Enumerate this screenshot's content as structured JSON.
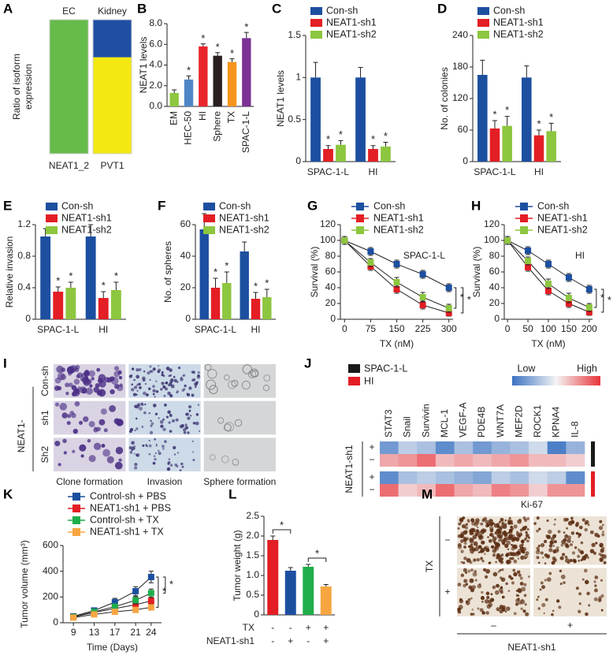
{
  "chart_data": [
    {
      "panel": "A",
      "type": "stacked-bar",
      "categories": [
        "EC",
        "Kidney"
      ],
      "ylabel": [
        "Ratio of isoform",
        "expression"
      ],
      "x_labels": [
        "NEAT1_2",
        "PVT1"
      ],
      "ylim": [
        0,
        100
      ],
      "series": [
        {
          "color": "#66bb4a",
          "values": [
            100,
            0
          ]
        },
        {
          "color": "#f3e812",
          "values": [
            0,
            72
          ]
        },
        {
          "color": "#1f4ea3",
          "values": [
            0,
            28
          ]
        }
      ]
    },
    {
      "panel": "B",
      "type": "bar",
      "ylabel": "NEAT1 levels",
      "categories": [
        "EM",
        "HEC-50",
        "HI",
        "Sphere",
        "TX",
        "SPAC-1-L"
      ],
      "values": [
        1.3,
        2.6,
        5.8,
        4.9,
        4.3,
        6.6
      ],
      "errors": [
        0.3,
        0.35,
        0.25,
        0.3,
        0.3,
        0.55
      ],
      "colors": [
        "#8dc63f",
        "#4f86c6",
        "#e8262a",
        "#2a1f1f",
        "#f7941d",
        "#7b3294"
      ],
      "annotations": [
        null,
        "*",
        "*",
        "*",
        "*",
        "*"
      ],
      "ylim": [
        0,
        8
      ],
      "yticks": [
        {
          "value": 0,
          "label": "0.0"
        },
        {
          "value": 2,
          "label": "2.0"
        },
        {
          "value": 4,
          "label": "4.0"
        },
        {
          "value": 6,
          "label": "6.0"
        },
        {
          "value": 8,
          "label": "8.0"
        }
      ]
    },
    {
      "panel": "C",
      "type": "grouped-bar",
      "ylabel": "NEAT1 levels",
      "categories": [
        "SPAC-1-L",
        "HI"
      ],
      "ylim": [
        0,
        1.5
      ],
      "yticks": [
        0,
        0.5,
        1,
        1.5
      ],
      "series": [
        {
          "name": "Con-sh",
          "color": "#1c4fa0",
          "values": [
            1.0,
            1.0
          ],
          "errors": [
            0.18,
            0.12
          ]
        },
        {
          "name": "NEAT1-sh1",
          "color": "#e31e24",
          "values": [
            0.15,
            0.15
          ],
          "errors": [
            0.04,
            0.04
          ],
          "markers": [
            "*",
            "*"
          ]
        },
        {
          "name": "NEAT1-sh2",
          "color": "#8dc63f",
          "values": [
            0.2,
            0.18
          ],
          "errors": [
            0.05,
            0.05
          ],
          "markers": [
            "*",
            "*"
          ]
        }
      ]
    },
    {
      "panel": "D",
      "type": "grouped-bar",
      "ylabel": "No. of colonies",
      "categories": [
        "SPAC-1-L",
        "HI"
      ],
      "ylim": [
        0,
        240
      ],
      "yticks": [
        0,
        60,
        120,
        180,
        240
      ],
      "series": [
        {
          "name": "Con-sh",
          "color": "#1c4fa0",
          "values": [
            165,
            160
          ],
          "errors": [
            28,
            22
          ]
        },
        {
          "name": "NEAT1-sh1",
          "color": "#e31e24",
          "values": [
            63,
            50
          ],
          "errors": [
            15,
            10
          ],
          "markers": [
            "*",
            "*"
          ]
        },
        {
          "name": "NEAT1-sh2",
          "color": "#8dc63f",
          "values": [
            68,
            58
          ],
          "errors": [
            18,
            15
          ],
          "markers": [
            "*",
            "*"
          ]
        }
      ]
    },
    {
      "panel": "E",
      "type": "grouped-bar",
      "ylabel": "Relative invasion",
      "categories": [
        "SPAC-1-L",
        "HI"
      ],
      "ylim": [
        0,
        1.2
      ],
      "yticks": [
        0,
        0.4,
        0.8,
        1.2
      ],
      "series": [
        {
          "name": "Con-sh",
          "color": "#1c4fa0",
          "values": [
            1.05,
            1.05
          ],
          "errors": [
            0.1,
            0.15
          ]
        },
        {
          "name": "NEAT1-sh1",
          "color": "#e31e24",
          "values": [
            0.35,
            0.27
          ],
          "errors": [
            0.06,
            0.08
          ],
          "markers": [
            "*",
            "*"
          ]
        },
        {
          "name": "NEAT1-sh2",
          "color": "#8dc63f",
          "values": [
            0.4,
            0.37
          ],
          "errors": [
            0.07,
            0.1
          ],
          "markers": [
            "*",
            "*"
          ]
        }
      ]
    },
    {
      "panel": "F",
      "type": "grouped-bar",
      "ylabel": "No. of spheres",
      "categories": [
        "SPAC-1-L",
        "HI"
      ],
      "ylim": [
        0,
        60
      ],
      "yticks": [
        0,
        20,
        40,
        60
      ],
      "series": [
        {
          "name": "Con-sh",
          "color": "#1c4fa0",
          "values": [
            57,
            43
          ],
          "errors": [
            10,
            6
          ]
        },
        {
          "name": "NEAT1-sh1",
          "color": "#e31e24",
          "values": [
            20,
            13
          ],
          "errors": [
            6,
            4
          ],
          "markers": [
            "*",
            "*"
          ]
        },
        {
          "name": "NEAT1-sh2",
          "color": "#8dc63f",
          "values": [
            23,
            14
          ],
          "errors": [
            7,
            5
          ],
          "markers": [
            "*",
            "*"
          ]
        }
      ]
    },
    {
      "panel": "G",
      "type": "line",
      "ylabel": "Survival (%)",
      "xlabel": "TX (nM)",
      "annotation": "SPAC-1-L",
      "significance": [
        "*",
        "*"
      ],
      "x": [
        0,
        75,
        150,
        225,
        300
      ],
      "xlim": [
        -12,
        312
      ],
      "xticks": [
        0,
        75,
        150,
        225,
        300
      ],
      "ylim": [
        0,
        120
      ],
      "yticks": [
        0,
        20,
        40,
        60,
        80,
        100,
        120
      ],
      "series": [
        {
          "name": "Con-sh",
          "color": "#1c4fa0",
          "values": [
            100,
            86,
            70,
            57,
            40
          ],
          "errors": [
            5,
            5,
            5,
            5,
            5
          ]
        },
        {
          "name": "NEAT1-sh1",
          "color": "#e31e24",
          "values": [
            100,
            67,
            38,
            18,
            8
          ],
          "errors": [
            5,
            5,
            5,
            5,
            4
          ]
        },
        {
          "name": "NEAT1-sh2",
          "color": "#8dc63f",
          "values": [
            100,
            72,
            47,
            28,
            14
          ],
          "errors": [
            5,
            5,
            6,
            6,
            5
          ]
        }
      ]
    },
    {
      "panel": "H",
      "type": "line",
      "ylabel": "Survival (%)",
      "xlabel": "TX (nM)",
      "annotation": "HI",
      "significance": [
        "*",
        "*"
      ],
      "x": [
        0,
        50,
        100,
        150,
        200
      ],
      "xlim": [
        -8,
        208
      ],
      "xticks": [
        0,
        50,
        100,
        150,
        200
      ],
      "ylim": [
        0,
        120
      ],
      "yticks": [
        0,
        20,
        40,
        60,
        80,
        100,
        120
      ],
      "series": [
        {
          "name": "Con-sh",
          "color": "#1c4fa0",
          "values": [
            100,
            87,
            70,
            53,
            38
          ],
          "errors": [
            5,
            5,
            5,
            5,
            5
          ]
        },
        {
          "name": "NEAT1-sh1",
          "color": "#e31e24",
          "values": [
            100,
            66,
            36,
            20,
            9
          ],
          "errors": [
            5,
            5,
            5,
            5,
            4
          ]
        },
        {
          "name": "NEAT1-sh2",
          "color": "#8dc63f",
          "values": [
            100,
            74,
            45,
            27,
            15
          ],
          "errors": [
            5,
            5,
            6,
            6,
            5
          ]
        }
      ]
    },
    {
      "panel": "I",
      "type": "image-grid",
      "rows": [
        "Con-sh",
        "sh1",
        "Sh2"
      ],
      "row_group": "NEAT1-",
      "columns": [
        "Clone formation",
        "Invasion",
        "Sphere formation"
      ]
    },
    {
      "panel": "J",
      "type": "heatmap",
      "scale_labels": [
        "Low",
        "High"
      ],
      "colorscale": [
        "#3a72c2",
        "#f4f4f4",
        "#e8333a"
      ],
      "zlim": [
        -1,
        1
      ],
      "group_label": "NEAT1-sh1",
      "columns": [
        "STAT3",
        "Snail",
        "Survivin",
        "MCL-1",
        "VEGF-A",
        "PDE4B",
        "WNT7A",
        "MEF2D",
        "ROCK1",
        "KPNA4",
        "IL-8"
      ],
      "groups": [
        {
          "name": "SPAC-1-L",
          "color": "#1a1a1a",
          "rows": [
            {
              "label": "+",
              "values": [
                -0.7,
                -0.3,
                -0.4,
                -0.8,
                -0.4,
                -0.7,
                -0.5,
                -0.4,
                -0.2,
                -0.9,
                -0.5
              ]
            },
            {
              "label": "−",
              "values": [
                0.4,
                0.5,
                0.7,
                0.3,
                0.4,
                0.3,
                0.4,
                0.5,
                0.3,
                0.3,
                0.2
              ]
            }
          ]
        },
        {
          "name": "HI",
          "color": "#e31e24",
          "rows": [
            {
              "label": "+",
              "values": [
                -0.8,
                -0.4,
                -0.3,
                -0.4,
                -0.5,
                -0.6,
                -0.3,
                -0.4,
                -0.2,
                -0.3,
                -0.8
              ]
            },
            {
              "label": "−",
              "values": [
                0.7,
                0.2,
                0.3,
                0.7,
                0.4,
                0.3,
                0.6,
                0.5,
                0.2,
                0.5,
                0.5
              ]
            }
          ]
        }
      ]
    },
    {
      "panel": "K",
      "type": "line",
      "ylabel": "Tumor volume (mm³)",
      "xlabel": "Time (Days)",
      "significance": [
        "*",
        "*"
      ],
      "x": [
        9,
        13,
        17,
        21,
        24
      ],
      "xlim": [
        7,
        26
      ],
      "xticks": [
        9,
        13,
        17,
        21,
        24
      ],
      "ylim": [
        0,
        600
      ],
      "yticks": [
        0,
        200,
        400,
        600
      ],
      "series": [
        {
          "name": "Control-sh + PBS",
          "color": "#1c4fa0",
          "values": [
            50,
            95,
            160,
            245,
            355
          ],
          "errors": [
            15,
            20,
            30,
            35,
            45
          ]
        },
        {
          "name": "NEAT1-sh1 + PBS",
          "color": "#e31e24",
          "values": [
            45,
            80,
            110,
            140,
            170
          ],
          "errors": [
            12,
            15,
            20,
            22,
            25
          ]
        },
        {
          "name": "Control-sh + TX",
          "color": "#1fae4b",
          "values": [
            45,
            85,
            125,
            175,
            230
          ],
          "errors": [
            12,
            18,
            22,
            28,
            32
          ]
        },
        {
          "name": "NEAT1-sh1 + TX",
          "color": "#f7a541",
          "values": [
            40,
            65,
            85,
            100,
            120
          ],
          "errors": [
            10,
            14,
            18,
            20,
            22
          ]
        }
      ]
    },
    {
      "panel": "L",
      "type": "bar",
      "ylabel": "Tumor weight (g)",
      "values": [
        1.9,
        1.12,
        1.22,
        0.72
      ],
      "errors": [
        0.1,
        0.08,
        0.06,
        0.05
      ],
      "colors": [
        "#e31e24",
        "#1c4fa0",
        "#1fae4b",
        "#f7a541"
      ],
      "significance": [
        "*",
        "*"
      ],
      "ylim": [
        0,
        2.5
      ],
      "yticks": [
        0,
        0.5,
        {
          "value": 1,
          "label": "1.0"
        },
        1.5,
        {
          "value": 2,
          "label": "2.0"
        },
        2.5
      ],
      "table": [
        {
          "label": "TX",
          "signs": [
            "-",
            "-",
            "+",
            "+"
          ]
        },
        {
          "label": "NEAT1-sh1",
          "signs": [
            "-",
            "+",
            "-",
            "+"
          ]
        }
      ]
    },
    {
      "panel": "M",
      "type": "image-grid",
      "title": "Ki-67",
      "row_axis": "TX",
      "rows": [
        "−",
        "+"
      ],
      "columns": [
        "–",
        "+"
      ],
      "column_axis": "NEAT1-sh1"
    }
  ]
}
